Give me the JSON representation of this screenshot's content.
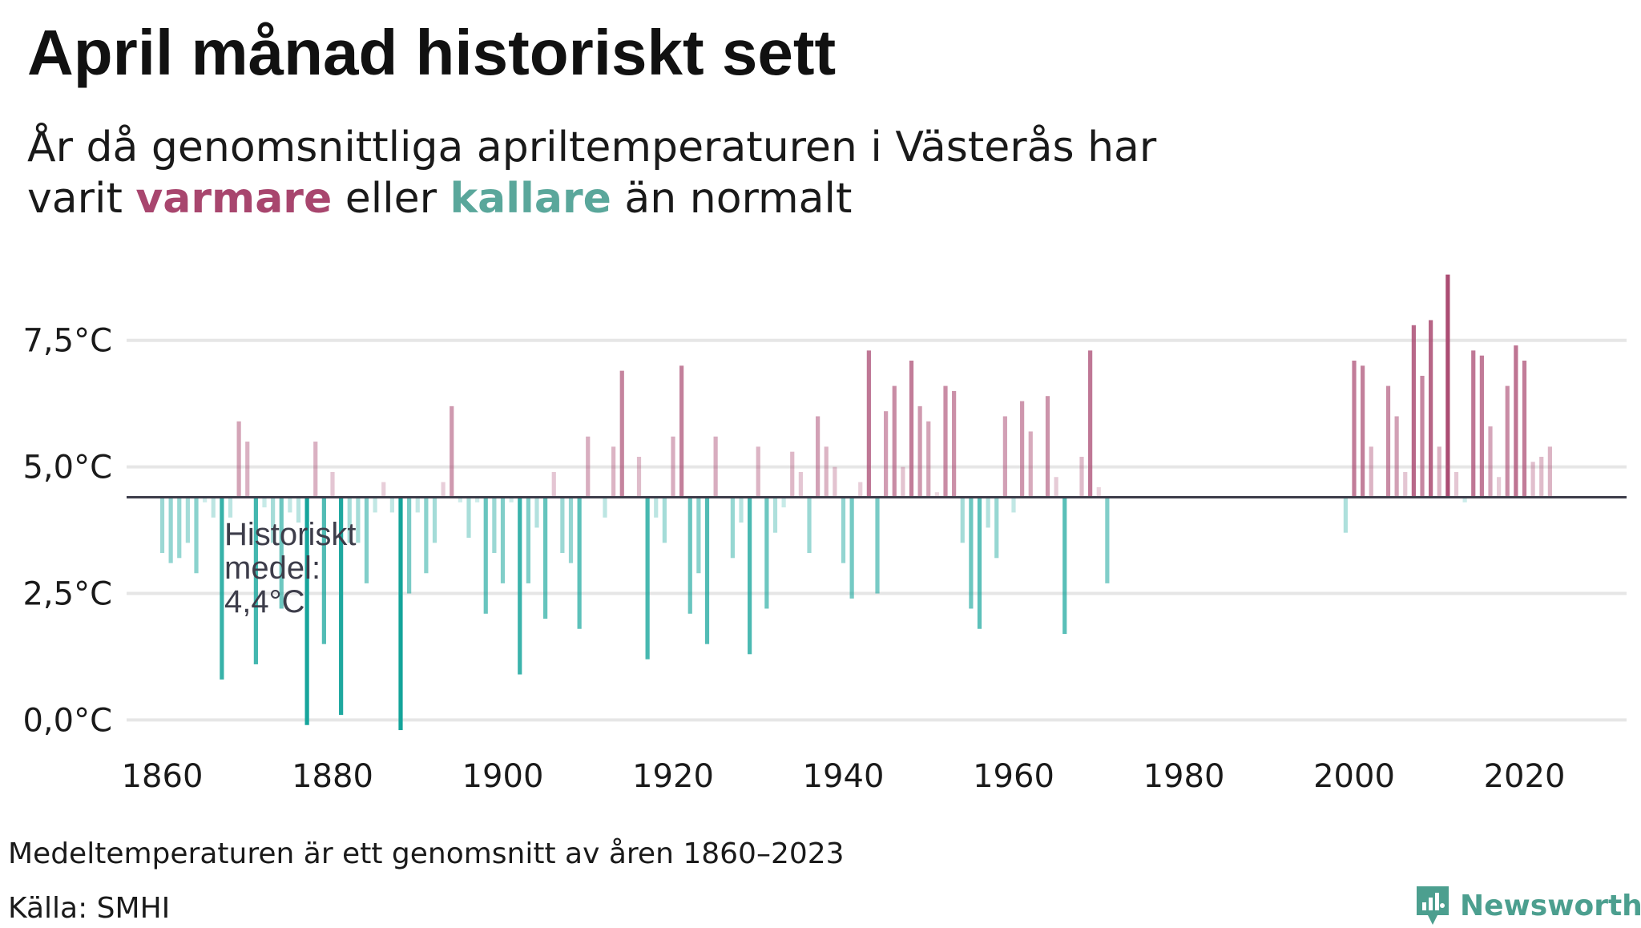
{
  "header": {
    "title": "April månad historiskt sett",
    "subtitle_part1": "År då genomsnittliga apriltemperaturen i Västerås har",
    "subtitle_part2": "varit",
    "subtitle_warm": "varmare",
    "subtitle_part3": "eller",
    "subtitle_cold": "kallare",
    "subtitle_part4": "än normalt"
  },
  "annotation": {
    "line1": "Historiskt",
    "line2": "medel:",
    "line3": "4,4°C"
  },
  "footer": {
    "note": "Medeltemperaturen är ett genomsnitt av åren 1860–2023",
    "source": "Källa: SMHI",
    "brand": "Newsworthy"
  },
  "colors": {
    "warm": "#a8466e",
    "cold": "#13a49a",
    "baseline": "#3d3d4a",
    "grid": "#e6e6e6"
  },
  "chart_data": {
    "type": "bar",
    "baseline": 4.4,
    "xlim": [
      1856,
      2032
    ],
    "ylim": [
      -0.5,
      9.0
    ],
    "x_ticks": [
      1860,
      1880,
      1900,
      1920,
      1940,
      1960,
      1980,
      2000,
      2020
    ],
    "y_ticks": [
      0,
      2.5,
      5,
      7.5
    ],
    "y_tick_labels": [
      "0,0°C",
      "2,5°C",
      "5,0°C",
      "7,5°C"
    ],
    "grid": true,
    "x": [
      1860,
      1861,
      1862,
      1863,
      1864,
      1865,
      1866,
      1867,
      1868,
      1869,
      1870,
      1871,
      1872,
      1873,
      1874,
      1875,
      1876,
      1877,
      1878,
      1879,
      1880,
      1881,
      1882,
      1883,
      1884,
      1885,
      1886,
      1887,
      1888,
      1889,
      1890,
      1891,
      1892,
      1893,
      1894,
      1895,
      1896,
      1897,
      1898,
      1899,
      1900,
      1901,
      1902,
      1903,
      1904,
      1905,
      1906,
      1907,
      1908,
      1909,
      1910,
      1911,
      1912,
      1913,
      1914,
      1915,
      1916,
      1917,
      1918,
      1919,
      1920,
      1921,
      1922,
      1923,
      1924,
      1925,
      1926,
      1927,
      1928,
      1929,
      1930,
      1931,
      1932,
      1933,
      1934,
      1935,
      1936,
      1937,
      1938,
      1939,
      1940,
      1941,
      1942,
      1943,
      1944,
      1945,
      1946,
      1947,
      1948,
      1949,
      1950,
      1951,
      1952,
      1953,
      1954,
      1955,
      1956,
      1957,
      1958,
      1959,
      1960,
      1961,
      1962,
      1963,
      1964,
      1965,
      1966,
      1967,
      1968,
      1969,
      1970,
      1971,
      1999,
      2000,
      2001,
      2002,
      2003,
      2004,
      2005,
      2006,
      2007,
      2008,
      2009,
      2010,
      2011,
      2012,
      2013,
      2014,
      2015,
      2016,
      2017,
      2018,
      2019,
      2020,
      2021,
      2022,
      2023
    ],
    "values": [
      3.3,
      3.1,
      3.2,
      3.5,
      2.9,
      4.3,
      4.0,
      0.8,
      4.0,
      5.9,
      5.5,
      1.1,
      4.2,
      3.5,
      2.2,
      4.1,
      3.9,
      -0.1,
      5.5,
      1.5,
      4.9,
      0.1,
      3.5,
      3.5,
      2.7,
      4.1,
      4.7,
      4.1,
      -0.2,
      2.5,
      4.1,
      2.9,
      3.5,
      4.7,
      6.2,
      4.3,
      3.6,
      4.3,
      2.1,
      3.3,
      2.7,
      4.3,
      0.9,
      2.7,
      3.8,
      2.0,
      4.9,
      3.3,
      3.1,
      1.8,
      5.6,
      4.4,
      4.0,
      5.4,
      6.9,
      4.4,
      5.2,
      1.2,
      4.0,
      3.5,
      5.6,
      7.0,
      2.1,
      2.9,
      1.5,
      5.6,
      4.4,
      3.2,
      3.9,
      1.3,
      5.4,
      2.2,
      3.7,
      4.2,
      5.3,
      4.9,
      3.3,
      6.0,
      5.4,
      5.0,
      3.1,
      2.4,
      4.7,
      7.3,
      2.5,
      6.1,
      6.6,
      5.0,
      7.1,
      6.2,
      5.9,
      4.5,
      6.6,
      6.5,
      3.5,
      2.2,
      1.8,
      3.8,
      3.2,
      6.0,
      4.1,
      6.3,
      5.7,
      4.4,
      6.4,
      4.8,
      1.7,
      4.4,
      5.2,
      7.3,
      4.6,
      2.7,
      3.7,
      7.1,
      7.0,
      5.4,
      4.4,
      6.6,
      6.0,
      4.9,
      7.8,
      6.8,
      7.9,
      5.4,
      8.8,
      4.9,
      4.3,
      7.3,
      7.2,
      5.8,
      4.8,
      6.6,
      7.4,
      7.1,
      5.1,
      5.2,
      5.4
    ]
  }
}
